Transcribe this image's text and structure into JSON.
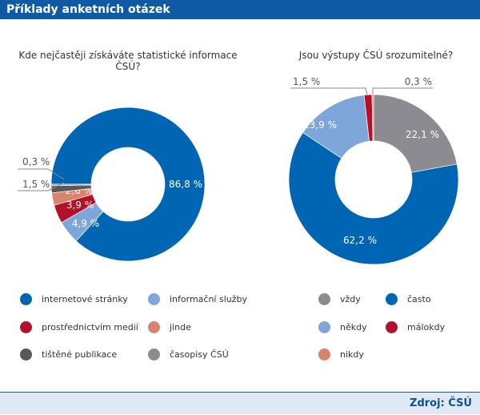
{
  "header": {
    "title": "Příklady anketních otázek"
  },
  "footer": {
    "source": "Zdroj: ČSÚ"
  },
  "chart_data": [
    {
      "type": "pie",
      "title": "Kde nejčastěji získáváte statistické informace ČSÚ?",
      "categories": [
        "internetové stránky",
        "informační služby",
        "prostřednictvím medií",
        "jinde",
        "tištěné publikace",
        "časopisy ČSÚ"
      ],
      "values": [
        86.8,
        4.9,
        3.9,
        2.6,
        1.5,
        0.3
      ],
      "labels": [
        "86,8 %",
        "4,9 %",
        "3,9 %",
        "2,6 %",
        "1,5 %",
        "0,3 %"
      ],
      "colors": [
        "#0066b3",
        "#7fa6da",
        "#b5102a",
        "#d9826d",
        "#585858",
        "#8b8b91"
      ],
      "donut": true,
      "legend": "bottom"
    },
    {
      "type": "pie",
      "title": "Jsou výstupy ČSÚ srozumitelné?",
      "categories": [
        "vždy",
        "často",
        "někdy",
        "málokdy",
        "nikdy"
      ],
      "values": [
        22.1,
        62.2,
        13.9,
        1.5,
        0.3
      ],
      "labels": [
        "22,1 %",
        "62,2 %",
        "13,9 %",
        "1,5 %",
        "0,3 %"
      ],
      "colors": [
        "#8b8b91",
        "#0066b3",
        "#7fa6da",
        "#b5102a",
        "#d9826d"
      ],
      "donut": true,
      "legend": "bottom"
    }
  ]
}
